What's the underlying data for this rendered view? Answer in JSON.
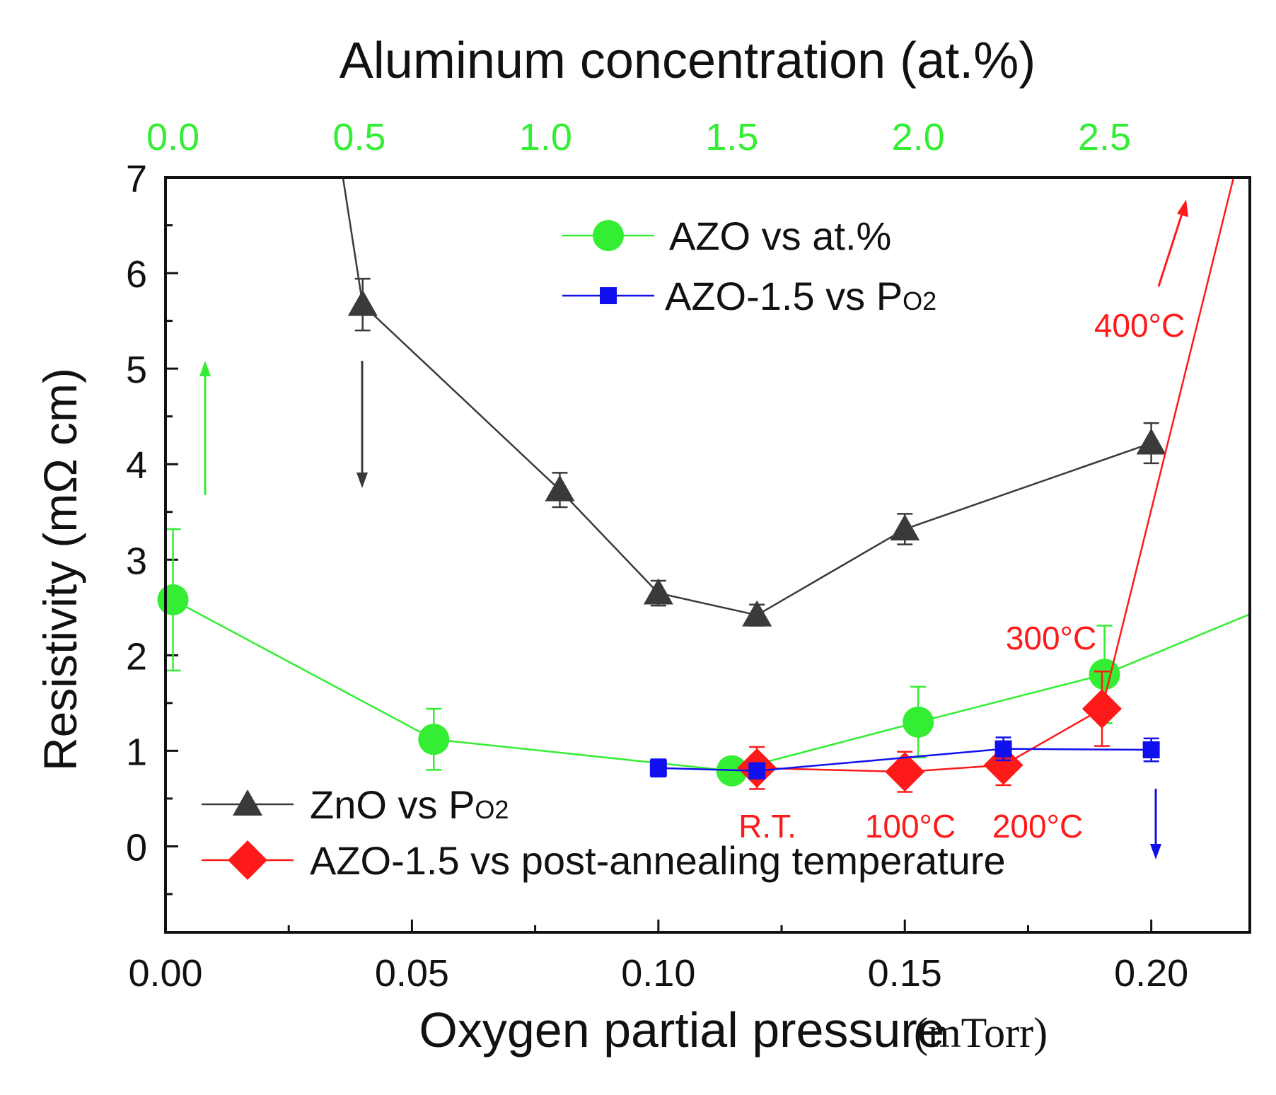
{
  "chart_data": {
    "type": "line",
    "xlabel": "Oxygen partial pressure",
    "xunit": "(mTorr)",
    "ylabel": "Resistivity (mΩ cm)",
    "x2label": "Aluminum concentration (at.%)",
    "xlim": [
      0.0,
      0.22
    ],
    "ylim": [
      -0.9,
      7.0
    ],
    "x2lim": [
      -0.02,
      2.89
    ],
    "x_ticks": [
      "0.00",
      "0.05",
      "0.10",
      "0.15",
      "0.20"
    ],
    "y_ticks": [
      "0",
      "1",
      "2",
      "3",
      "4",
      "5",
      "6",
      "7"
    ],
    "x2_ticks": [
      "0.0",
      "0.5",
      "1.0",
      "1.5",
      "2.0",
      "2.5"
    ],
    "colors": {
      "zno": "#3a3a3a",
      "azo_at": "#33ee33",
      "azo_po2": "#1010ee",
      "azo_anneal": "#ff1a1a",
      "tick_top": "#33ee33"
    },
    "series": [
      {
        "name": "ZnO vs P",
        "name_sub": "O2",
        "axis": "bottom",
        "marker": "triangle",
        "color_key": "zno",
        "points": [
          {
            "x": 0.04,
            "y": 5.67,
            "err": 0.27
          },
          {
            "x": 0.08,
            "y": 3.73,
            "err": 0.18
          },
          {
            "x": 0.1,
            "y": 2.65,
            "err": 0.13
          },
          {
            "x": 0.12,
            "y": 2.42,
            "err": 0.11
          },
          {
            "x": 0.15,
            "y": 3.32,
            "err": 0.16
          },
          {
            "x": 0.2,
            "y": 4.22,
            "err": 0.21
          }
        ],
        "extra_line_from": [
          0.036,
          7.0
        ]
      },
      {
        "name": "AZO vs at.%",
        "axis": "top",
        "marker": "circle",
        "color_key": "azo_at",
        "points": [
          {
            "x": 0.0,
            "y": 2.58,
            "err": 0.74
          },
          {
            "x": 0.7,
            "y": 1.12,
            "err": 0.32
          },
          {
            "x": 1.5,
            "y": 0.79,
            "err": 0.08
          },
          {
            "x": 2.0,
            "y": 1.3,
            "err": 0.37
          },
          {
            "x": 2.5,
            "y": 1.8,
            "err": 0.51
          }
        ],
        "extra_line_to": [
          2.89,
          2.43
        ]
      },
      {
        "name": "AZO-1.5 vs P",
        "name_sub": "O2",
        "axis": "bottom",
        "marker": "square",
        "color_key": "azo_po2",
        "points": [
          {
            "x": 0.1,
            "y": 0.82,
            "err": 0.09
          },
          {
            "x": 0.12,
            "y": 0.79,
            "err": 0.08
          },
          {
            "x": 0.17,
            "y": 1.02,
            "err": 0.12
          },
          {
            "x": 0.2,
            "y": 1.01,
            "err": 0.12
          }
        ]
      },
      {
        "name": "AZO-1.5 vs post-annealing temperature",
        "axis": "bottom",
        "marker": "diamond",
        "color_key": "azo_anneal",
        "points": [
          {
            "x": 0.12,
            "y": 0.82,
            "err": 0.22,
            "label": "R.T."
          },
          {
            "x": 0.15,
            "y": 0.78,
            "err": 0.21,
            "label": "100°C"
          },
          {
            "x": 0.17,
            "y": 0.85,
            "err": 0.21,
            "label": "200°C"
          },
          {
            "x": 0.19,
            "y": 1.44,
            "err": 0.39,
            "label": "300°C"
          }
        ],
        "extra_line_to": [
          0.2167,
          7.0
        ],
        "off_chart_label": "400°C"
      }
    ],
    "legends": {
      "top": [
        "AZO vs at.%",
        "AZO-1.5 vs P"
      ],
      "bottom": [
        "ZnO vs P",
        "AZO-1.5 vs post-annealing temperature"
      ]
    }
  }
}
